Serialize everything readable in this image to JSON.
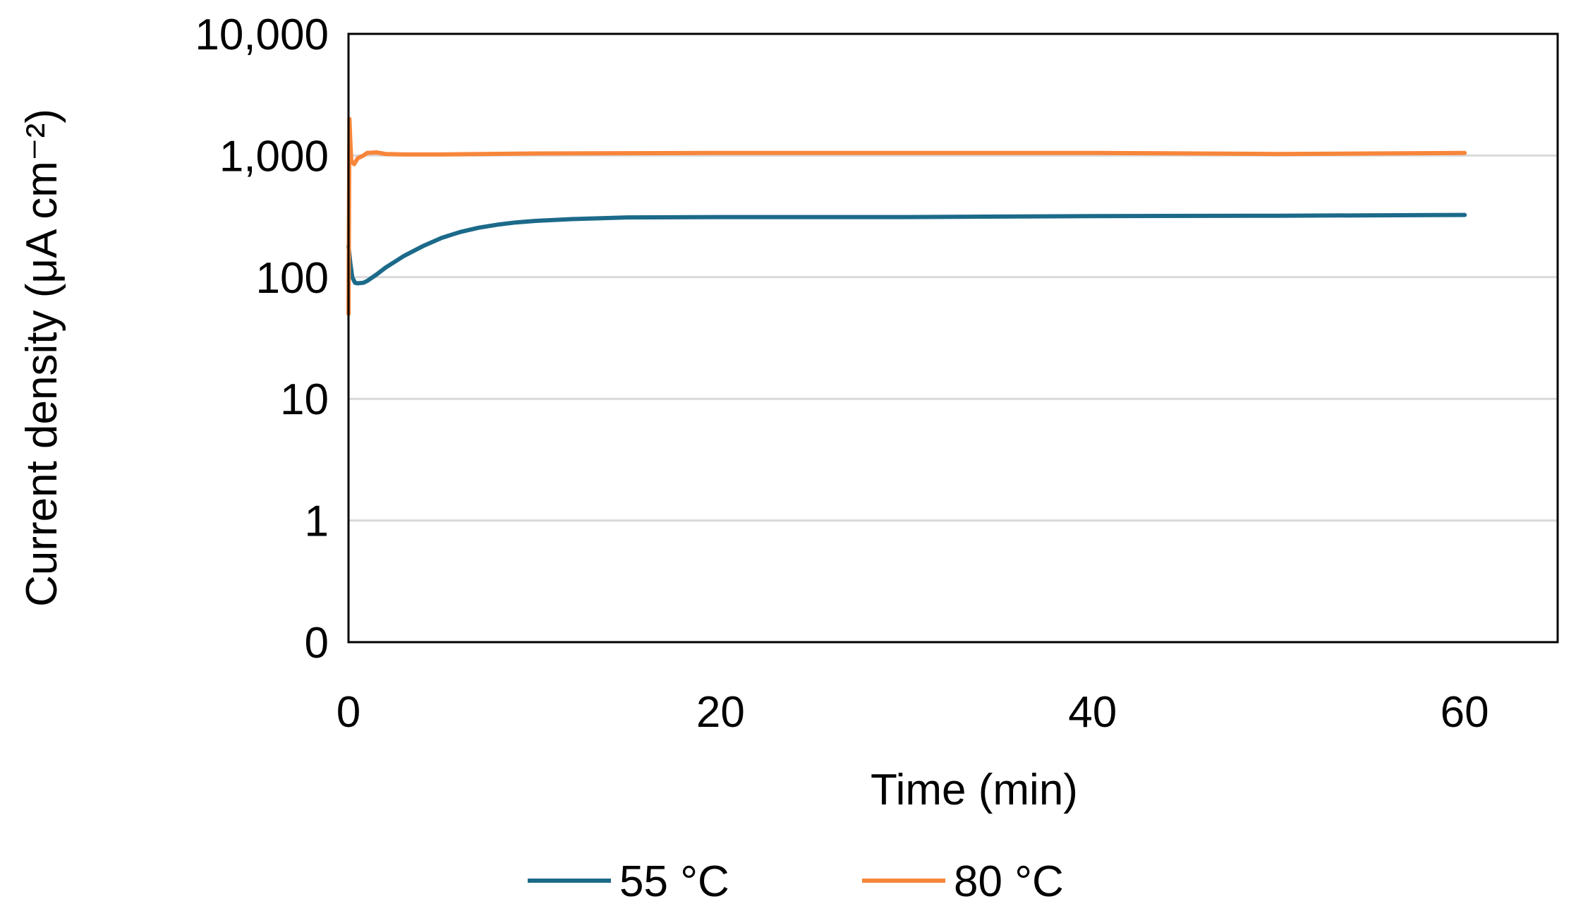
{
  "chart_data": {
    "type": "line",
    "xlabel": "Time (min)",
    "ylabel": "Current density (μA cm⁻²)",
    "xlim": [
      0,
      65
    ],
    "ylim": [
      0,
      10000
    ],
    "yscale": "log",
    "x_ticks": [
      0,
      20,
      40,
      60
    ],
    "x_tick_labels": [
      "0",
      "20",
      "40",
      "60"
    ],
    "y_ticks": [
      0,
      1,
      10,
      100,
      1000,
      10000
    ],
    "y_tick_labels": [
      "0",
      "1",
      "10",
      "100",
      "1,000",
      "10,000"
    ],
    "grid": true,
    "legend_position": "bottom",
    "colors": {
      "55 °C": "#1c6a8a",
      "80 °C": "#f7863b"
    },
    "series": [
      {
        "name": "55 °C",
        "x": [
          0,
          0.1,
          0.2,
          0.35,
          0.5,
          0.8,
          1,
          1.5,
          2,
          3,
          4,
          5,
          6,
          7,
          8,
          9,
          10,
          12,
          15,
          20,
          30,
          40,
          50,
          60
        ],
        "y": [
          180,
          130,
          100,
          90,
          89,
          90,
          93,
          105,
          120,
          150,
          180,
          210,
          235,
          255,
          270,
          282,
          290,
          300,
          310,
          312,
          312,
          318,
          320,
          325
        ]
      },
      {
        "name": "80 °C",
        "x": [
          0,
          0.05,
          0.1,
          0.15,
          0.3,
          0.5,
          0.8,
          1,
          1.5,
          2,
          3,
          5,
          10,
          20,
          40,
          50,
          55,
          60
        ],
        "y": [
          50,
          2000,
          1300,
          900,
          850,
          950,
          1000,
          1050,
          1060,
          1030,
          1020,
          1020,
          1040,
          1050,
          1050,
          1030,
          1040,
          1050
        ]
      }
    ]
  }
}
